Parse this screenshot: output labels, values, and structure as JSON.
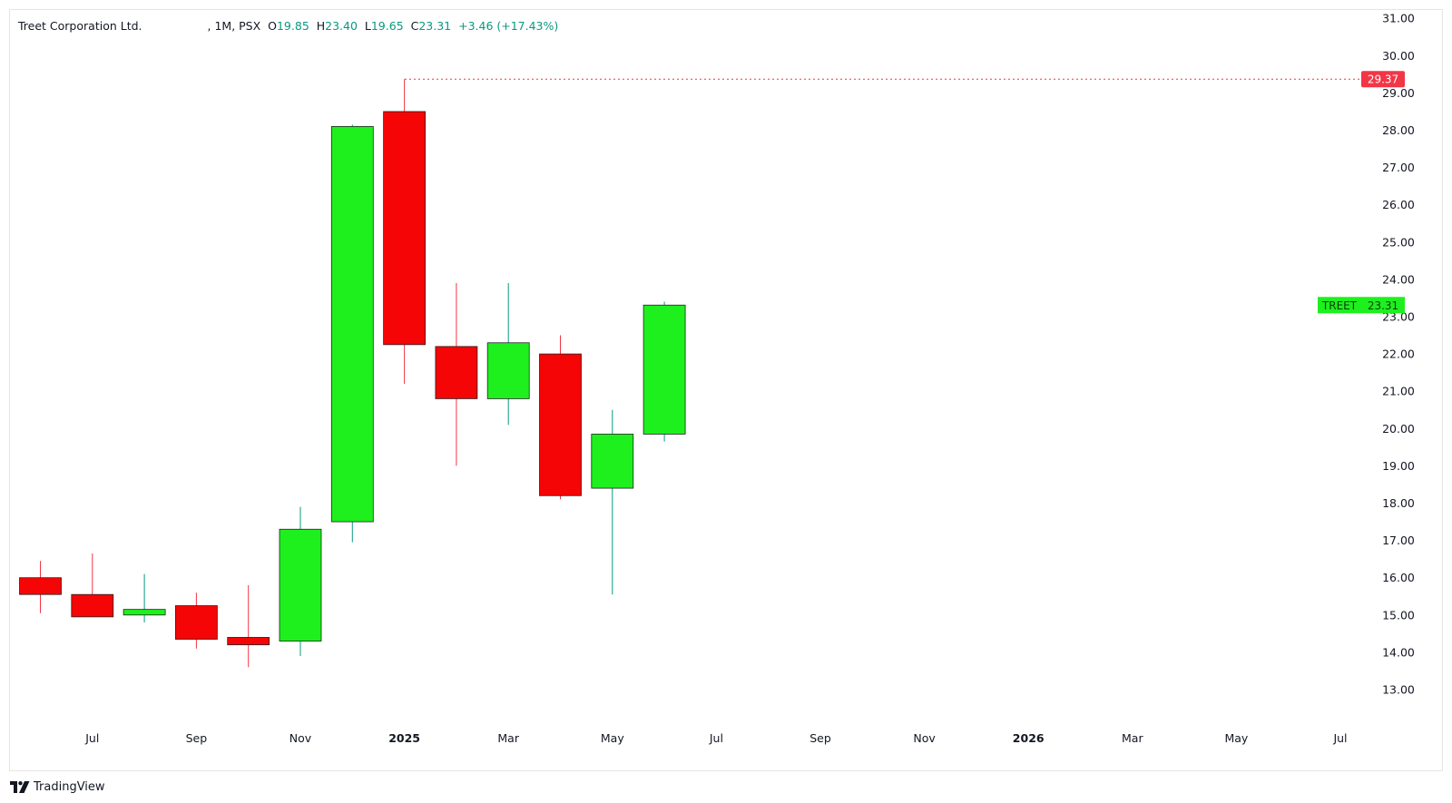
{
  "legend": {
    "symbol_name": "Treet Corporation Ltd.",
    "interval_exchange": ", 1M, PSX",
    "open_key": "O",
    "open_val": "19.85",
    "high_key": "H",
    "high_val": "23.40",
    "low_key": "L",
    "low_val": "19.65",
    "close_key": "C",
    "close_val": "23.31",
    "change": "+3.46 (+17.43%)"
  },
  "brand": {
    "name": "TradingView",
    "icon": "tradingview-logo-icon"
  },
  "colors": {
    "up": "#1ef01e",
    "down": "#f50505",
    "up_wick": "#089981",
    "down_wick": "#f23645",
    "price_line": "#f23645",
    "text": "#131722"
  },
  "chart_data": {
    "type": "candlestick",
    "series_name": "TREET",
    "interval": "1M",
    "ylim": [
      12.5,
      31.2
    ],
    "y_ticks": [
      "13.00",
      "14.00",
      "15.00",
      "16.00",
      "17.00",
      "18.00",
      "19.00",
      "20.00",
      "21.00",
      "22.00",
      "23.00",
      "24.00",
      "25.00",
      "26.00",
      "27.00",
      "28.00",
      "29.00",
      "30.00",
      "31.00"
    ],
    "x_ticks": [
      {
        "label": "Jul",
        "month": "2024-07"
      },
      {
        "label": "Sep",
        "month": "2024-09"
      },
      {
        "label": "Nov",
        "month": "2024-11"
      },
      {
        "label": "2025",
        "month": "2025-01",
        "bold": true
      },
      {
        "label": "Mar",
        "month": "2025-03"
      },
      {
        "label": "May",
        "month": "2025-05"
      },
      {
        "label": "Jul",
        "month": "2025-07"
      },
      {
        "label": "Sep",
        "month": "2025-09"
      },
      {
        "label": "Nov",
        "month": "2025-11"
      },
      {
        "label": "2026",
        "month": "2026-01",
        "bold": true
      },
      {
        "label": "Mar",
        "month": "2026-03"
      },
      {
        "label": "May",
        "month": "2026-05"
      },
      {
        "label": "Jul",
        "month": "2026-07"
      }
    ],
    "candles": [
      {
        "date": "2024-06",
        "open": 16.0,
        "high": 16.45,
        "low": 15.05,
        "close": 15.55
      },
      {
        "date": "2024-07",
        "open": 15.55,
        "high": 16.65,
        "low": 14.95,
        "close": 14.95
      },
      {
        "date": "2024-08",
        "open": 15.0,
        "high": 16.1,
        "low": 14.8,
        "close": 15.15
      },
      {
        "date": "2024-09",
        "open": 15.25,
        "high": 15.6,
        "low": 14.1,
        "close": 14.35
      },
      {
        "date": "2024-10",
        "open": 14.4,
        "high": 15.8,
        "low": 13.6,
        "close": 14.2
      },
      {
        "date": "2024-11",
        "open": 14.3,
        "high": 17.9,
        "low": 13.9,
        "close": 17.3
      },
      {
        "date": "2024-12",
        "open": 17.5,
        "high": 28.15,
        "low": 16.95,
        "close": 28.1
      },
      {
        "date": "2025-01",
        "open": 28.5,
        "high": 29.37,
        "low": 21.2,
        "close": 22.25
      },
      {
        "date": "2025-02",
        "open": 22.2,
        "high": 23.9,
        "low": 19.0,
        "close": 20.8
      },
      {
        "date": "2025-03",
        "open": 20.8,
        "high": 23.9,
        "low": 20.1,
        "close": 22.3
      },
      {
        "date": "2025-04",
        "open": 22.0,
        "high": 22.5,
        "low": 18.1,
        "close": 18.2
      },
      {
        "date": "2025-05",
        "open": 18.4,
        "high": 20.5,
        "low": 15.55,
        "close": 19.85
      },
      {
        "date": "2025-06",
        "open": 19.85,
        "high": 23.4,
        "low": 19.65,
        "close": 23.31
      }
    ],
    "high_line": {
      "value": 29.37,
      "label": "29.37"
    },
    "last_price": {
      "value": 23.31,
      "label": "23.31",
      "symbol": "TREET"
    }
  }
}
